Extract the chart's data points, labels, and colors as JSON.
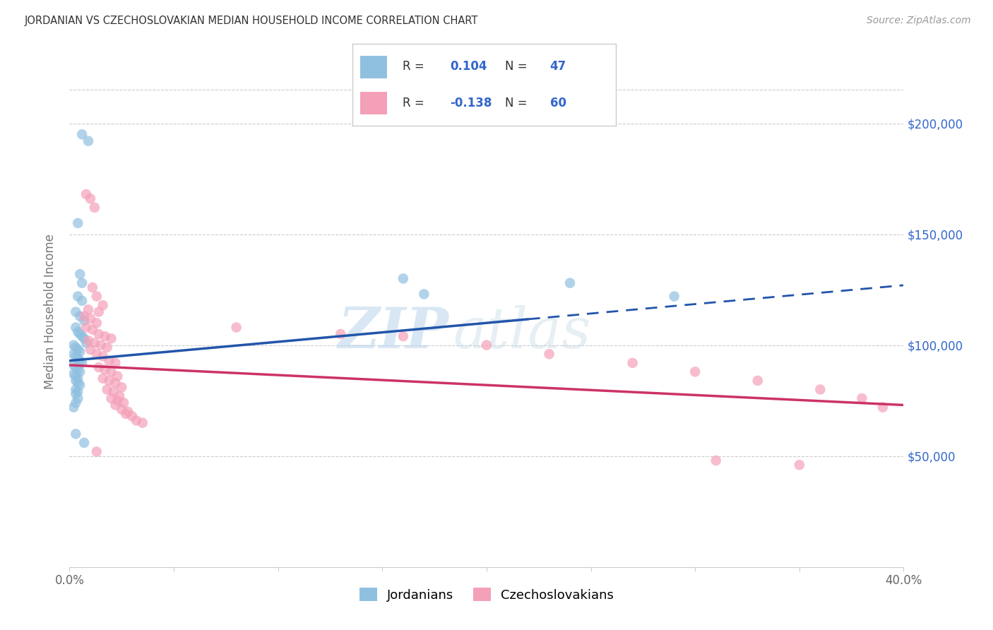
{
  "title": "JORDANIAN VS CZECHOSLOVAKIAN MEDIAN HOUSEHOLD INCOME CORRELATION CHART",
  "source": "Source: ZipAtlas.com",
  "ylabel": "Median Household Income",
  "xmin": 0.0,
  "xmax": 0.4,
  "ymin": 0,
  "ymax": 230000,
  "yticks": [
    50000,
    100000,
    150000,
    200000
  ],
  "ytick_labels": [
    "$50,000",
    "$100,000",
    "$150,000",
    "$200,000"
  ],
  "jordanian_color": "#90c0e0",
  "czechoslovakian_color": "#f4a0b8",
  "trend_blue": "#2255aa",
  "trend_pink": "#cc3366",
  "watermark_top": "ZIP",
  "watermark_bot": "atlas",
  "jordanian_R": "0.104",
  "jordanian_N": "47",
  "czechoslovakian_R": "-0.138",
  "czechoslovakian_N": "60",
  "jordanian_points_x": [
    0.006,
    0.009,
    0.004,
    0.005,
    0.006,
    0.004,
    0.006,
    0.003,
    0.005,
    0.007,
    0.003,
    0.004,
    0.005,
    0.006,
    0.007,
    0.008,
    0.002,
    0.003,
    0.004,
    0.005,
    0.002,
    0.003,
    0.004,
    0.005,
    0.006,
    0.002,
    0.003,
    0.004,
    0.005,
    0.002,
    0.003,
    0.004,
    0.003,
    0.004,
    0.005,
    0.003,
    0.004,
    0.003,
    0.004,
    0.003,
    0.002,
    0.003,
    0.007,
    0.16,
    0.17,
    0.24,
    0.29
  ],
  "jordanian_points_y": [
    195000,
    192000,
    155000,
    132000,
    128000,
    122000,
    120000,
    115000,
    113000,
    111000,
    108000,
    106000,
    105000,
    104000,
    103000,
    101000,
    100000,
    99000,
    98000,
    97000,
    96000,
    95000,
    94000,
    93000,
    92000,
    91000,
    90000,
    89000,
    88000,
    87000,
    86000,
    85000,
    84000,
    83000,
    82000,
    80000,
    79000,
    78000,
    76000,
    74000,
    72000,
    60000,
    56000,
    130000,
    123000,
    128000,
    122000
  ],
  "czechoslovakian_points_x": [
    0.008,
    0.01,
    0.012,
    0.011,
    0.013,
    0.016,
    0.009,
    0.014,
    0.007,
    0.01,
    0.013,
    0.008,
    0.011,
    0.014,
    0.017,
    0.02,
    0.009,
    0.012,
    0.015,
    0.018,
    0.01,
    0.013,
    0.016,
    0.019,
    0.022,
    0.014,
    0.017,
    0.02,
    0.023,
    0.016,
    0.019,
    0.022,
    0.025,
    0.018,
    0.021,
    0.024,
    0.02,
    0.023,
    0.026,
    0.022,
    0.025,
    0.028,
    0.027,
    0.03,
    0.032,
    0.035,
    0.013,
    0.08,
    0.13,
    0.16,
    0.2,
    0.23,
    0.27,
    0.3,
    0.33,
    0.36,
    0.38,
    0.39,
    0.31,
    0.35
  ],
  "czechoslovakian_points_y": [
    168000,
    166000,
    162000,
    126000,
    122000,
    118000,
    116000,
    115000,
    113000,
    112000,
    110000,
    108000,
    107000,
    105000,
    104000,
    103000,
    102000,
    101000,
    100000,
    99000,
    98000,
    96000,
    95000,
    93000,
    92000,
    90000,
    89000,
    88000,
    86000,
    85000,
    84000,
    83000,
    81000,
    80000,
    79000,
    77000,
    76000,
    75000,
    74000,
    73000,
    71000,
    70000,
    69000,
    68000,
    66000,
    65000,
    52000,
    108000,
    105000,
    104000,
    100000,
    96000,
    92000,
    88000,
    84000,
    80000,
    76000,
    72000,
    48000,
    46000
  ]
}
